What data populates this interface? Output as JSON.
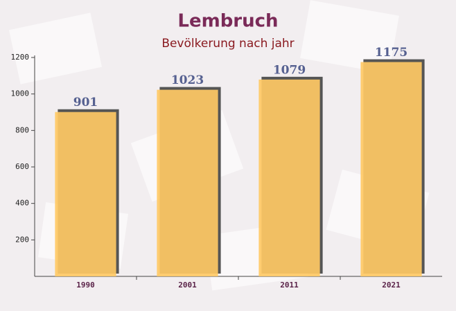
{
  "chart_data": {
    "type": "bar",
    "title": "Lembruch",
    "subtitle": "Bevölkerung nach jahr",
    "categories": [
      "1990",
      "2001",
      "2011",
      "2021"
    ],
    "values": [
      901,
      1023,
      1079,
      1175
    ],
    "color": "#ffc965",
    "ylim": [
      0,
      1200
    ],
    "yticks": [
      200,
      400,
      600,
      800,
      1000,
      1200
    ],
    "grid": false
  }
}
